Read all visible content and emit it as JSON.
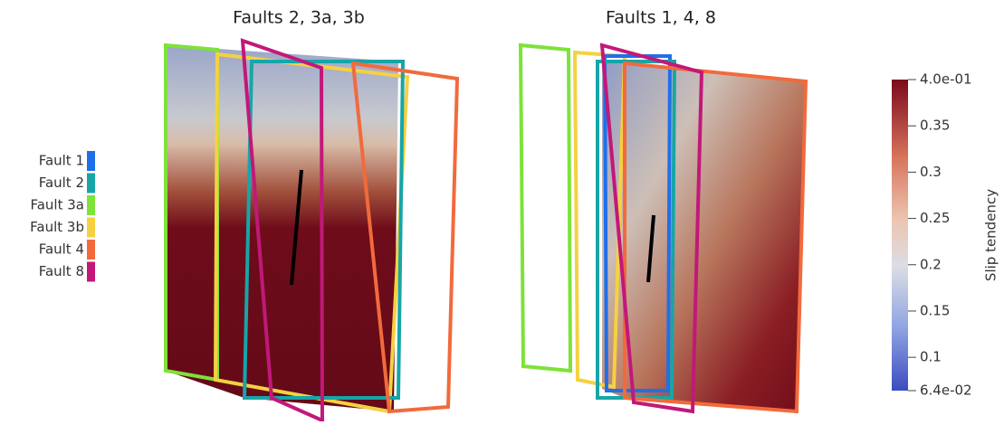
{
  "panels": [
    {
      "title": "Faults 2, 3a, 3b"
    },
    {
      "title": "Faults 1, 4, 8"
    }
  ],
  "legend": [
    {
      "label": "Fault 1",
      "color": "#1f6fe8"
    },
    {
      "label": "Fault 2",
      "color": "#17a5a8"
    },
    {
      "label": "Fault 3a",
      "color": "#7ee23a"
    },
    {
      "label": "Fault 3b",
      "color": "#f5d142"
    },
    {
      "label": "Fault 4",
      "color": "#f26a3c"
    },
    {
      "label": "Fault 8",
      "color": "#c2187a"
    }
  ],
  "colorbar": {
    "title": "Slip tendency",
    "range": [
      0.064,
      0.4
    ],
    "ticks": [
      {
        "value": 0.4,
        "label": "4.0e-01"
      },
      0.35,
      0.3,
      0.25,
      0.2,
      0.15,
      0.1,
      {
        "value": 0.064,
        "label": "6.4e-02"
      }
    ]
  }
}
